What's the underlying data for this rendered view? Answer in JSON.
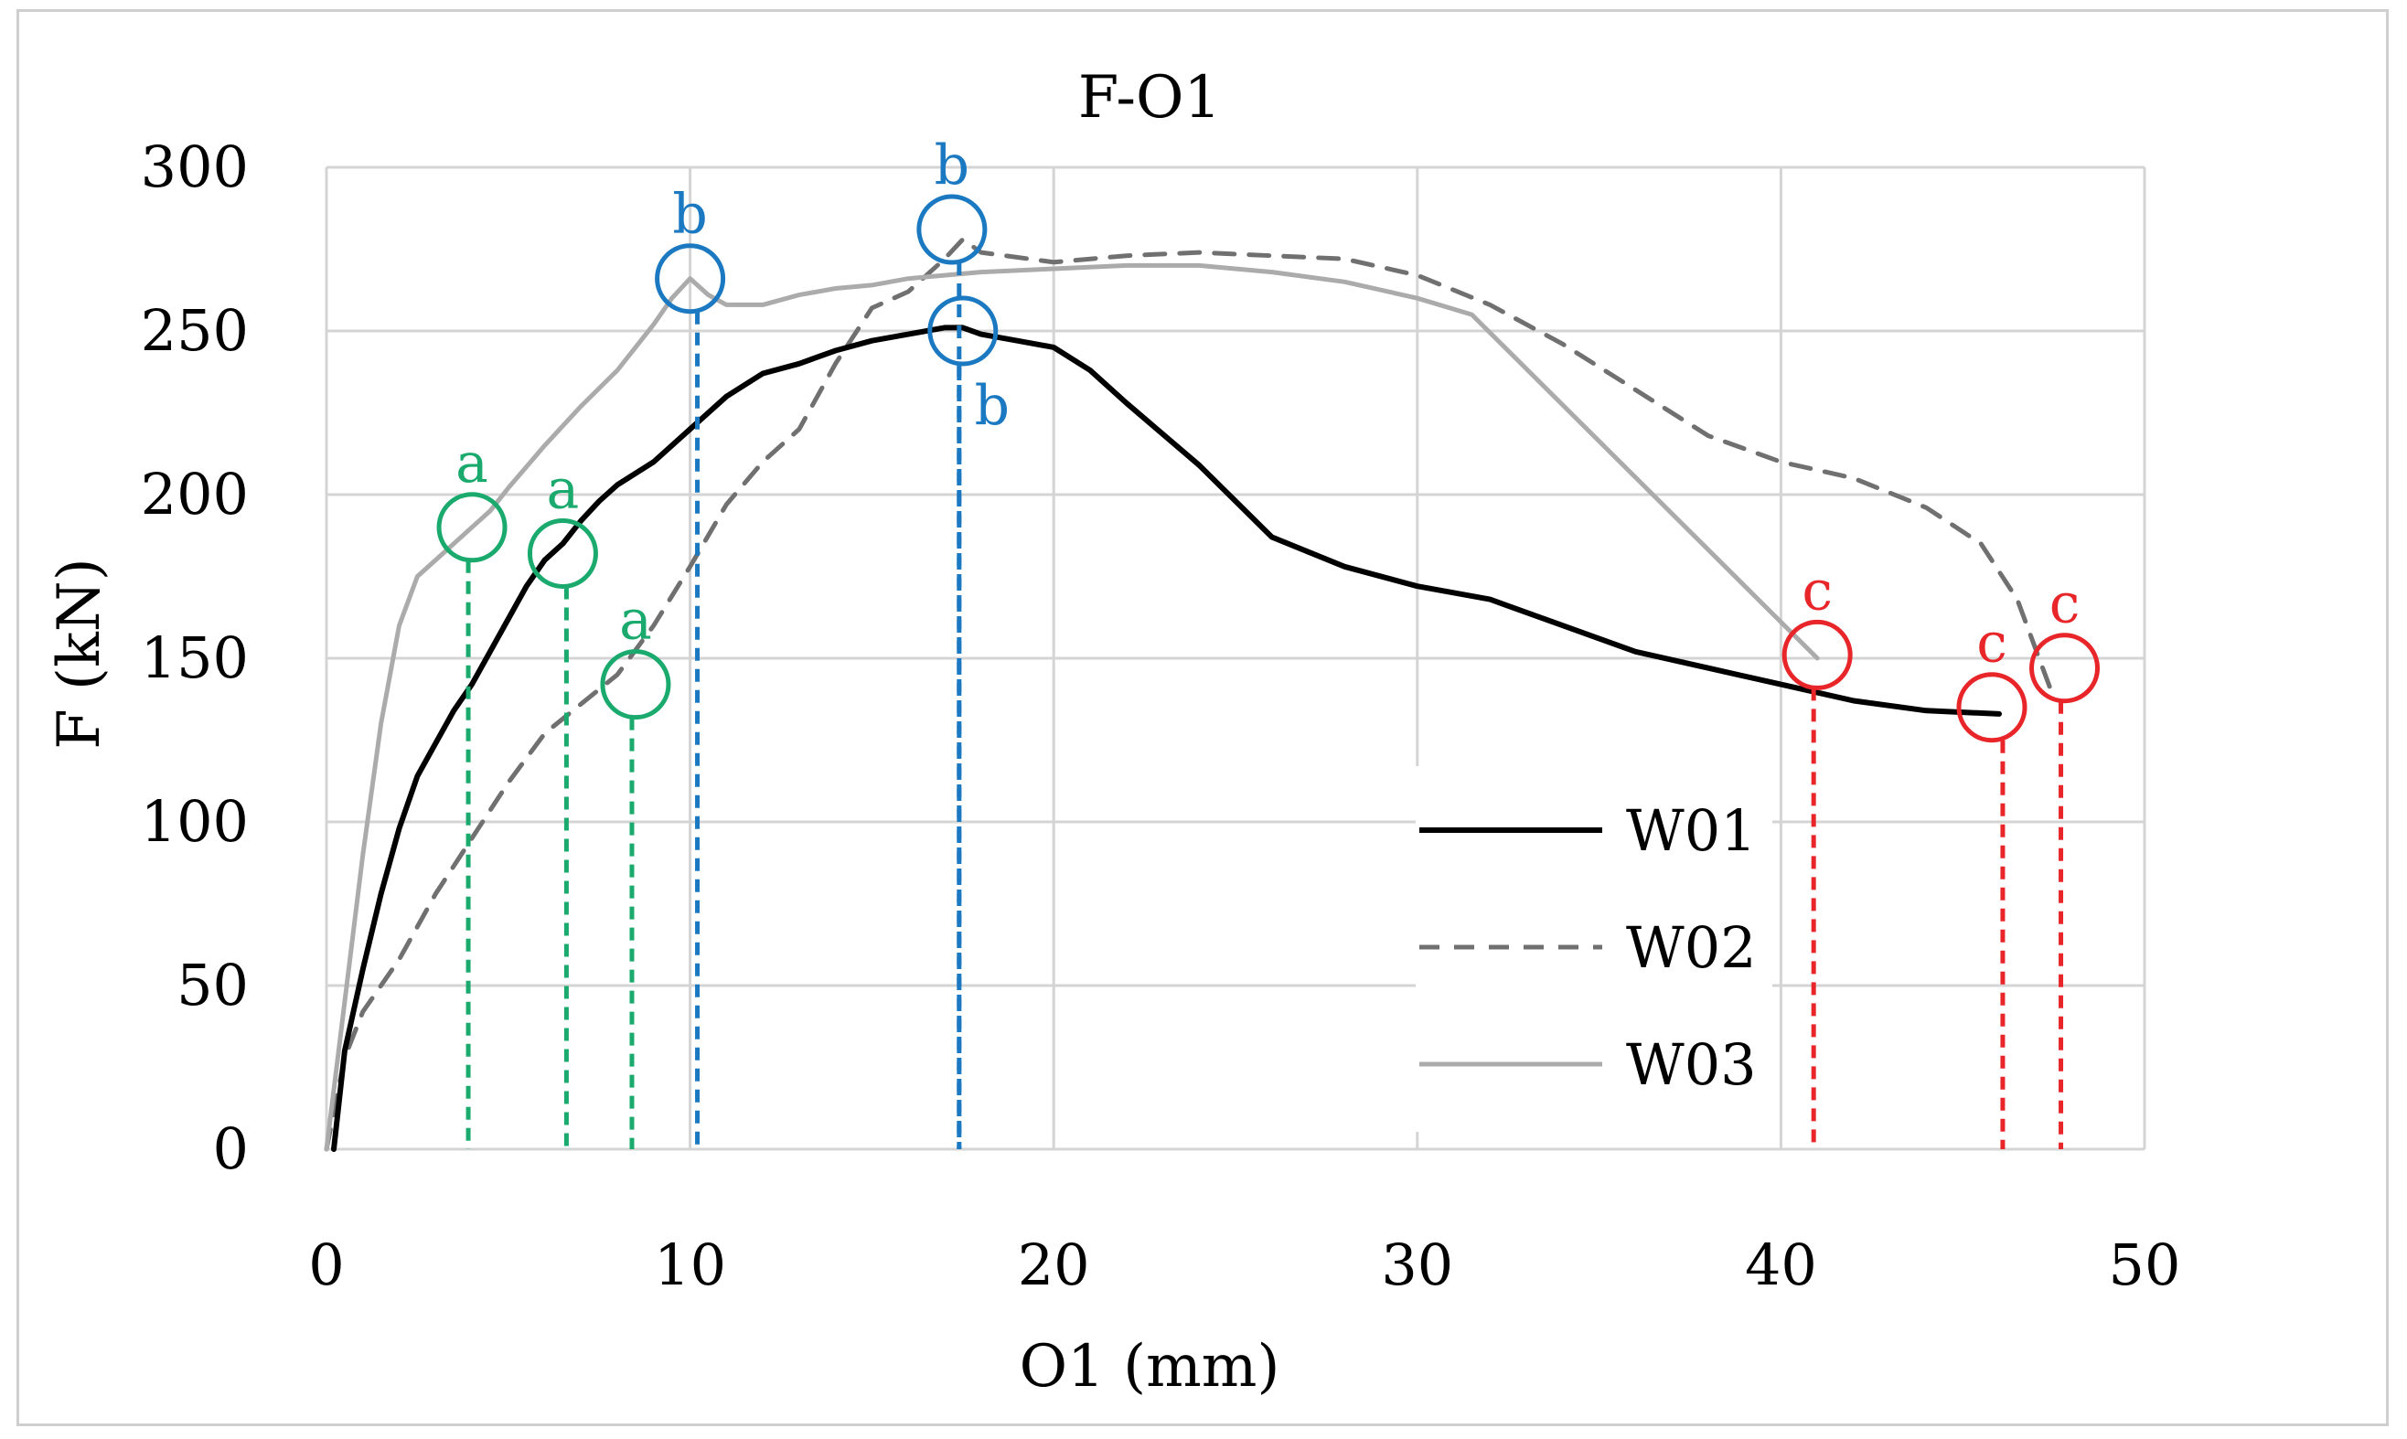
{
  "chart_data": {
    "type": "line",
    "title": "F-O1",
    "xlabel": "O1 (mm)",
    "ylabel": "F (kN)",
    "xlim": [
      0,
      50
    ],
    "ylim": [
      0,
      300
    ],
    "xticks": [
      0,
      10,
      20,
      30,
      40,
      50
    ],
    "yticks": [
      0,
      50,
      100,
      150,
      200,
      250,
      300
    ],
    "grid": true,
    "legend_position": "bottom-right",
    "series": [
      {
        "name": "W01",
        "style": "solid",
        "color": "#000000",
        "x": [
          0.2,
          0.5,
          1,
          1.5,
          2,
          2.5,
          3,
          3.5,
          4,
          4.5,
          5,
          5.5,
          6,
          6.5,
          7,
          7.5,
          8,
          9,
          10,
          11,
          12,
          13,
          14,
          15,
          16,
          17,
          17.5,
          18,
          19,
          20,
          21,
          22,
          24,
          26,
          28,
          30,
          32,
          34,
          36,
          38,
          40,
          42,
          44,
          46
        ],
        "y": [
          0,
          30,
          55,
          78,
          98,
          114,
          124,
          134,
          142,
          152,
          162,
          172,
          180,
          185,
          192,
          198,
          203,
          210,
          220,
          230,
          237,
          240,
          244,
          247,
          249,
          251,
          251,
          249,
          247,
          245,
          238,
          228,
          209,
          187,
          178,
          172,
          168,
          160,
          152,
          147,
          142,
          137,
          134,
          133
        ]
      },
      {
        "name": "W02",
        "style": "dashed",
        "color": "#707070",
        "x": [
          0,
          0.5,
          1,
          2,
          3,
          4,
          5,
          6,
          7,
          8,
          9,
          10,
          11,
          12,
          13,
          14,
          15,
          16,
          17,
          17.5,
          18,
          20,
          22,
          24,
          26,
          28,
          30,
          32,
          34,
          36,
          38,
          40,
          42,
          44,
          45.5,
          46.5,
          47.5
        ],
        "y": [
          0,
          28,
          42,
          58,
          78,
          95,
          112,
          127,
          136,
          145,
          160,
          178,
          197,
          210,
          220,
          240,
          257,
          262,
          272,
          278,
          274,
          271,
          273,
          274,
          273,
          272,
          267,
          258,
          246,
          232,
          218,
          210,
          205,
          196,
          185,
          168,
          138
        ]
      },
      {
        "name": "W03",
        "style": "solid",
        "color": "#ababab",
        "x": [
          0,
          0.5,
          1,
          1.5,
          2,
          2.5,
          3,
          3.5,
          4,
          4.5,
          5,
          6,
          7,
          8,
          9,
          9.5,
          10,
          10.5,
          11,
          12,
          13,
          14,
          15,
          16,
          17,
          18,
          20,
          22,
          24,
          26,
          28,
          30,
          31.5,
          41
        ],
        "y": [
          0,
          45,
          90,
          130,
          160,
          175,
          180,
          185,
          190,
          195,
          202,
          215,
          227,
          238,
          252,
          260,
          266,
          261,
          258,
          258,
          261,
          263,
          264,
          266,
          267,
          268,
          269,
          270,
          270,
          268,
          265,
          260,
          255,
          150
        ]
      }
    ],
    "annotations": [
      {
        "label": "a",
        "x": 4.0,
        "y": 190,
        "drop_x": 3.9,
        "color": "#1aaa6e",
        "label_pos": "above"
      },
      {
        "label": "a",
        "x": 6.5,
        "y": 182,
        "drop_x": 6.6,
        "color": "#1aaa6e",
        "label_pos": "above"
      },
      {
        "label": "a",
        "x": 8.5,
        "y": 142,
        "drop_x": 8.4,
        "color": "#1aaa6e",
        "label_pos": "above"
      },
      {
        "label": "b",
        "x": 10.0,
        "y": 266,
        "drop_x": 10.2,
        "color": "#1b79c2",
        "label_pos": "above"
      },
      {
        "label": "b",
        "x": 17.2,
        "y": 281,
        "drop_x": 17.4,
        "color": "#1b79c2",
        "label_pos": "above"
      },
      {
        "label": "b",
        "x": 17.5,
        "y": 250,
        "drop_x": 17.4,
        "color": "#1b79c2",
        "label_pos": "below-right"
      },
      {
        "label": "c",
        "x": 41.0,
        "y": 151,
        "drop_x": 40.9,
        "color": "#e8262a",
        "label_pos": "above"
      },
      {
        "label": "c",
        "x": 45.8,
        "y": 135,
        "drop_x": 46.1,
        "color": "#e8262a",
        "label_pos": "above"
      },
      {
        "label": "c",
        "x": 47.8,
        "y": 147,
        "drop_x": 47.7,
        "color": "#e8262a",
        "label_pos": "above"
      }
    ]
  }
}
